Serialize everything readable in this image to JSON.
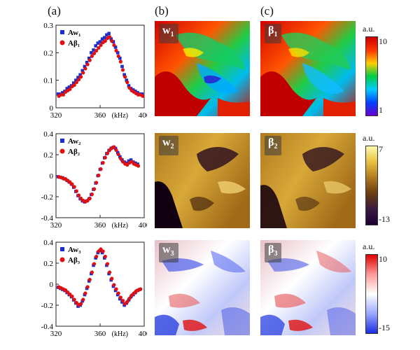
{
  "panel_labels": {
    "a": "(a)",
    "b": "(b)",
    "c": "(c)"
  },
  "map_tags": {
    "w1": [
      "w",
      "1"
    ],
    "b1": [
      "β",
      "1"
    ],
    "w2": [
      "w",
      "2"
    ],
    "b2": [
      "β",
      "2"
    ],
    "w3": [
      "w",
      "3"
    ],
    "b3": [
      "β",
      "3"
    ]
  },
  "colorbars": [
    {
      "unit": "a.u.",
      "max": "10",
      "min": "1",
      "colors": [
        "#cc0000",
        "#ff3300",
        "#ffcc00",
        "#00cc44",
        "#00ccff",
        "#0044ff",
        "#6600cc"
      ]
    },
    {
      "unit": "a.u.",
      "max": "7",
      "min": "-13",
      "colors": [
        "#fffbb0",
        "#e8c040",
        "#b07a20",
        "#6a3e10",
        "#3a1a40",
        "#1a0033"
      ]
    },
    {
      "unit": "a.u.",
      "max": "10",
      "min": "-15",
      "colors": [
        "#e00000",
        "#ff9a9a",
        "#ffffff",
        "#9aa8ff",
        "#1a2ee0"
      ]
    }
  ],
  "chart_data": [
    {
      "type": "scatter",
      "xlabel": "(kHz)",
      "xlim": [
        320,
        400
      ],
      "ylim": [
        0,
        0.3
      ],
      "xticks": [
        "320",
        "360",
        "400"
      ],
      "yticks": [
        "0",
        "0.1",
        "0.2",
        "0.3"
      ],
      "legend_position": "top-left",
      "series": [
        {
          "name": "Aw₁",
          "marker": "square",
          "color": "#1a2ecc",
          "x": [
            322,
            324,
            326,
            328,
            330,
            332,
            334,
            336,
            338,
            340,
            342,
            344,
            346,
            348,
            350,
            352,
            354,
            356,
            358,
            360,
            362,
            364,
            366,
            368,
            370,
            372,
            374,
            376,
            378,
            380,
            382,
            384,
            386,
            388,
            390,
            392,
            394,
            396,
            398
          ],
          "y": [
            0.05,
            0.05,
            0.055,
            0.06,
            0.07,
            0.075,
            0.08,
            0.09,
            0.1,
            0.11,
            0.12,
            0.135,
            0.15,
            0.165,
            0.18,
            0.2,
            0.21,
            0.225,
            0.235,
            0.24,
            0.25,
            0.255,
            0.265,
            0.27,
            0.25,
            0.24,
            0.22,
            0.2,
            0.18,
            0.15,
            0.12,
            0.1,
            0.08,
            0.07,
            0.065,
            0.06,
            0.055,
            0.05,
            0.05
          ]
        },
        {
          "name": "Aβ₁",
          "marker": "circle",
          "color": "#e01010",
          "x": [
            322,
            324,
            326,
            328,
            330,
            332,
            334,
            336,
            338,
            340,
            342,
            344,
            346,
            348,
            350,
            352,
            354,
            356,
            358,
            360,
            362,
            364,
            366,
            368,
            370,
            372,
            374,
            376,
            378,
            380,
            382,
            384,
            386,
            388,
            390,
            392,
            394,
            396,
            398
          ],
          "y": [
            0.045,
            0.05,
            0.05,
            0.06,
            0.065,
            0.07,
            0.08,
            0.085,
            0.095,
            0.105,
            0.115,
            0.13,
            0.145,
            0.16,
            0.175,
            0.19,
            0.2,
            0.21,
            0.22,
            0.23,
            0.24,
            0.245,
            0.255,
            0.26,
            0.245,
            0.23,
            0.21,
            0.19,
            0.17,
            0.14,
            0.115,
            0.095,
            0.075,
            0.065,
            0.06,
            0.055,
            0.05,
            0.05,
            0.045
          ]
        }
      ]
    },
    {
      "type": "scatter",
      "xlabel": "(kHz)",
      "xlim": [
        320,
        400
      ],
      "ylim": [
        -0.4,
        0.4
      ],
      "xticks": [
        "320",
        "360",
        "400"
      ],
      "yticks": [
        "-0.4",
        "-0.2",
        "0",
        "0.2",
        "0.4"
      ],
      "legend_position": "top-left",
      "series": [
        {
          "name": "Aw₂",
          "marker": "square",
          "color": "#1a2ecc",
          "x": [
            322,
            324,
            326,
            328,
            330,
            332,
            334,
            336,
            338,
            340,
            342,
            344,
            346,
            348,
            350,
            352,
            354,
            356,
            358,
            360,
            362,
            364,
            366,
            368,
            370,
            372,
            374,
            376,
            378,
            380,
            382,
            384,
            386,
            388,
            390,
            392,
            394
          ],
          "y": [
            -0.01,
            -0.015,
            -0.02,
            -0.03,
            -0.045,
            -0.06,
            -0.08,
            -0.11,
            -0.15,
            -0.19,
            -0.22,
            -0.24,
            -0.25,
            -0.24,
            -0.22,
            -0.18,
            -0.13,
            -0.07,
            0.0,
            0.06,
            0.12,
            0.17,
            0.21,
            0.24,
            0.26,
            0.27,
            0.26,
            0.22,
            0.18,
            0.15,
            0.13,
            0.12,
            0.14,
            0.15,
            0.13,
            0.12,
            0.11
          ]
        },
        {
          "name": "Aβ₂",
          "marker": "circle",
          "color": "#e01010",
          "x": [
            322,
            324,
            326,
            328,
            330,
            332,
            334,
            336,
            338,
            340,
            342,
            344,
            346,
            348,
            350,
            352,
            354,
            356,
            358,
            360,
            362,
            364,
            366,
            368,
            370,
            372,
            374,
            376,
            378,
            380,
            382,
            384,
            386,
            388,
            390,
            392,
            394
          ],
          "y": [
            -0.005,
            -0.01,
            -0.02,
            -0.025,
            -0.04,
            -0.055,
            -0.075,
            -0.1,
            -0.14,
            -0.18,
            -0.21,
            -0.23,
            -0.24,
            -0.23,
            -0.21,
            -0.17,
            -0.12,
            -0.06,
            0.01,
            0.07,
            0.13,
            0.18,
            0.22,
            0.25,
            0.27,
            0.28,
            0.25,
            0.21,
            0.17,
            0.14,
            0.12,
            0.11,
            0.13,
            0.14,
            0.12,
            0.11,
            0.1
          ]
        }
      ]
    },
    {
      "type": "scatter",
      "xlabel": "(kHz)",
      "xlim": [
        320,
        400
      ],
      "ylim": [
        -0.4,
        0.4
      ],
      "xticks": [
        "320",
        "360",
        "400"
      ],
      "yticks": [
        "-0.4",
        "-0.2",
        "0",
        "0.2",
        "0.4"
      ],
      "legend_position": "top-left",
      "series": [
        {
          "name": "Aw₃",
          "marker": "square",
          "color": "#1a2ecc",
          "x": [
            322,
            324,
            326,
            328,
            330,
            332,
            334,
            336,
            338,
            340,
            342,
            344,
            346,
            348,
            350,
            352,
            354,
            356,
            358,
            360,
            362,
            364,
            366,
            368,
            370,
            372,
            374,
            376,
            378,
            380,
            382,
            384,
            386,
            388,
            390,
            392,
            394,
            396
          ],
          "y": [
            -0.03,
            -0.04,
            -0.05,
            -0.06,
            -0.08,
            -0.1,
            -0.12,
            -0.15,
            -0.18,
            -0.21,
            -0.2,
            -0.16,
            -0.1,
            -0.04,
            0.03,
            0.1,
            0.18,
            0.25,
            0.3,
            0.32,
            0.3,
            0.25,
            0.18,
            0.1,
            0.04,
            -0.02,
            -0.06,
            -0.1,
            -0.14,
            -0.17,
            -0.2,
            -0.18,
            -0.15,
            -0.12,
            -0.1,
            -0.08,
            -0.06,
            -0.05
          ]
        },
        {
          "name": "Aβ₃",
          "marker": "circle",
          "color": "#e01010",
          "x": [
            322,
            324,
            326,
            328,
            330,
            332,
            334,
            336,
            338,
            340,
            342,
            344,
            346,
            348,
            350,
            352,
            354,
            356,
            358,
            360,
            362,
            364,
            366,
            368,
            370,
            372,
            374,
            376,
            378,
            380,
            382,
            384,
            386,
            388,
            390,
            392,
            394,
            396
          ],
          "y": [
            -0.02,
            -0.03,
            -0.04,
            -0.05,
            -0.07,
            -0.09,
            -0.11,
            -0.14,
            -0.17,
            -0.19,
            -0.18,
            -0.14,
            -0.08,
            -0.02,
            0.05,
            0.12,
            0.2,
            0.27,
            0.32,
            0.34,
            0.32,
            0.27,
            0.2,
            0.12,
            0.06,
            0.0,
            -0.04,
            -0.08,
            -0.12,
            -0.15,
            -0.18,
            -0.16,
            -0.13,
            -0.1,
            -0.08,
            -0.06,
            -0.05,
            -0.04
          ]
        }
      ]
    }
  ]
}
